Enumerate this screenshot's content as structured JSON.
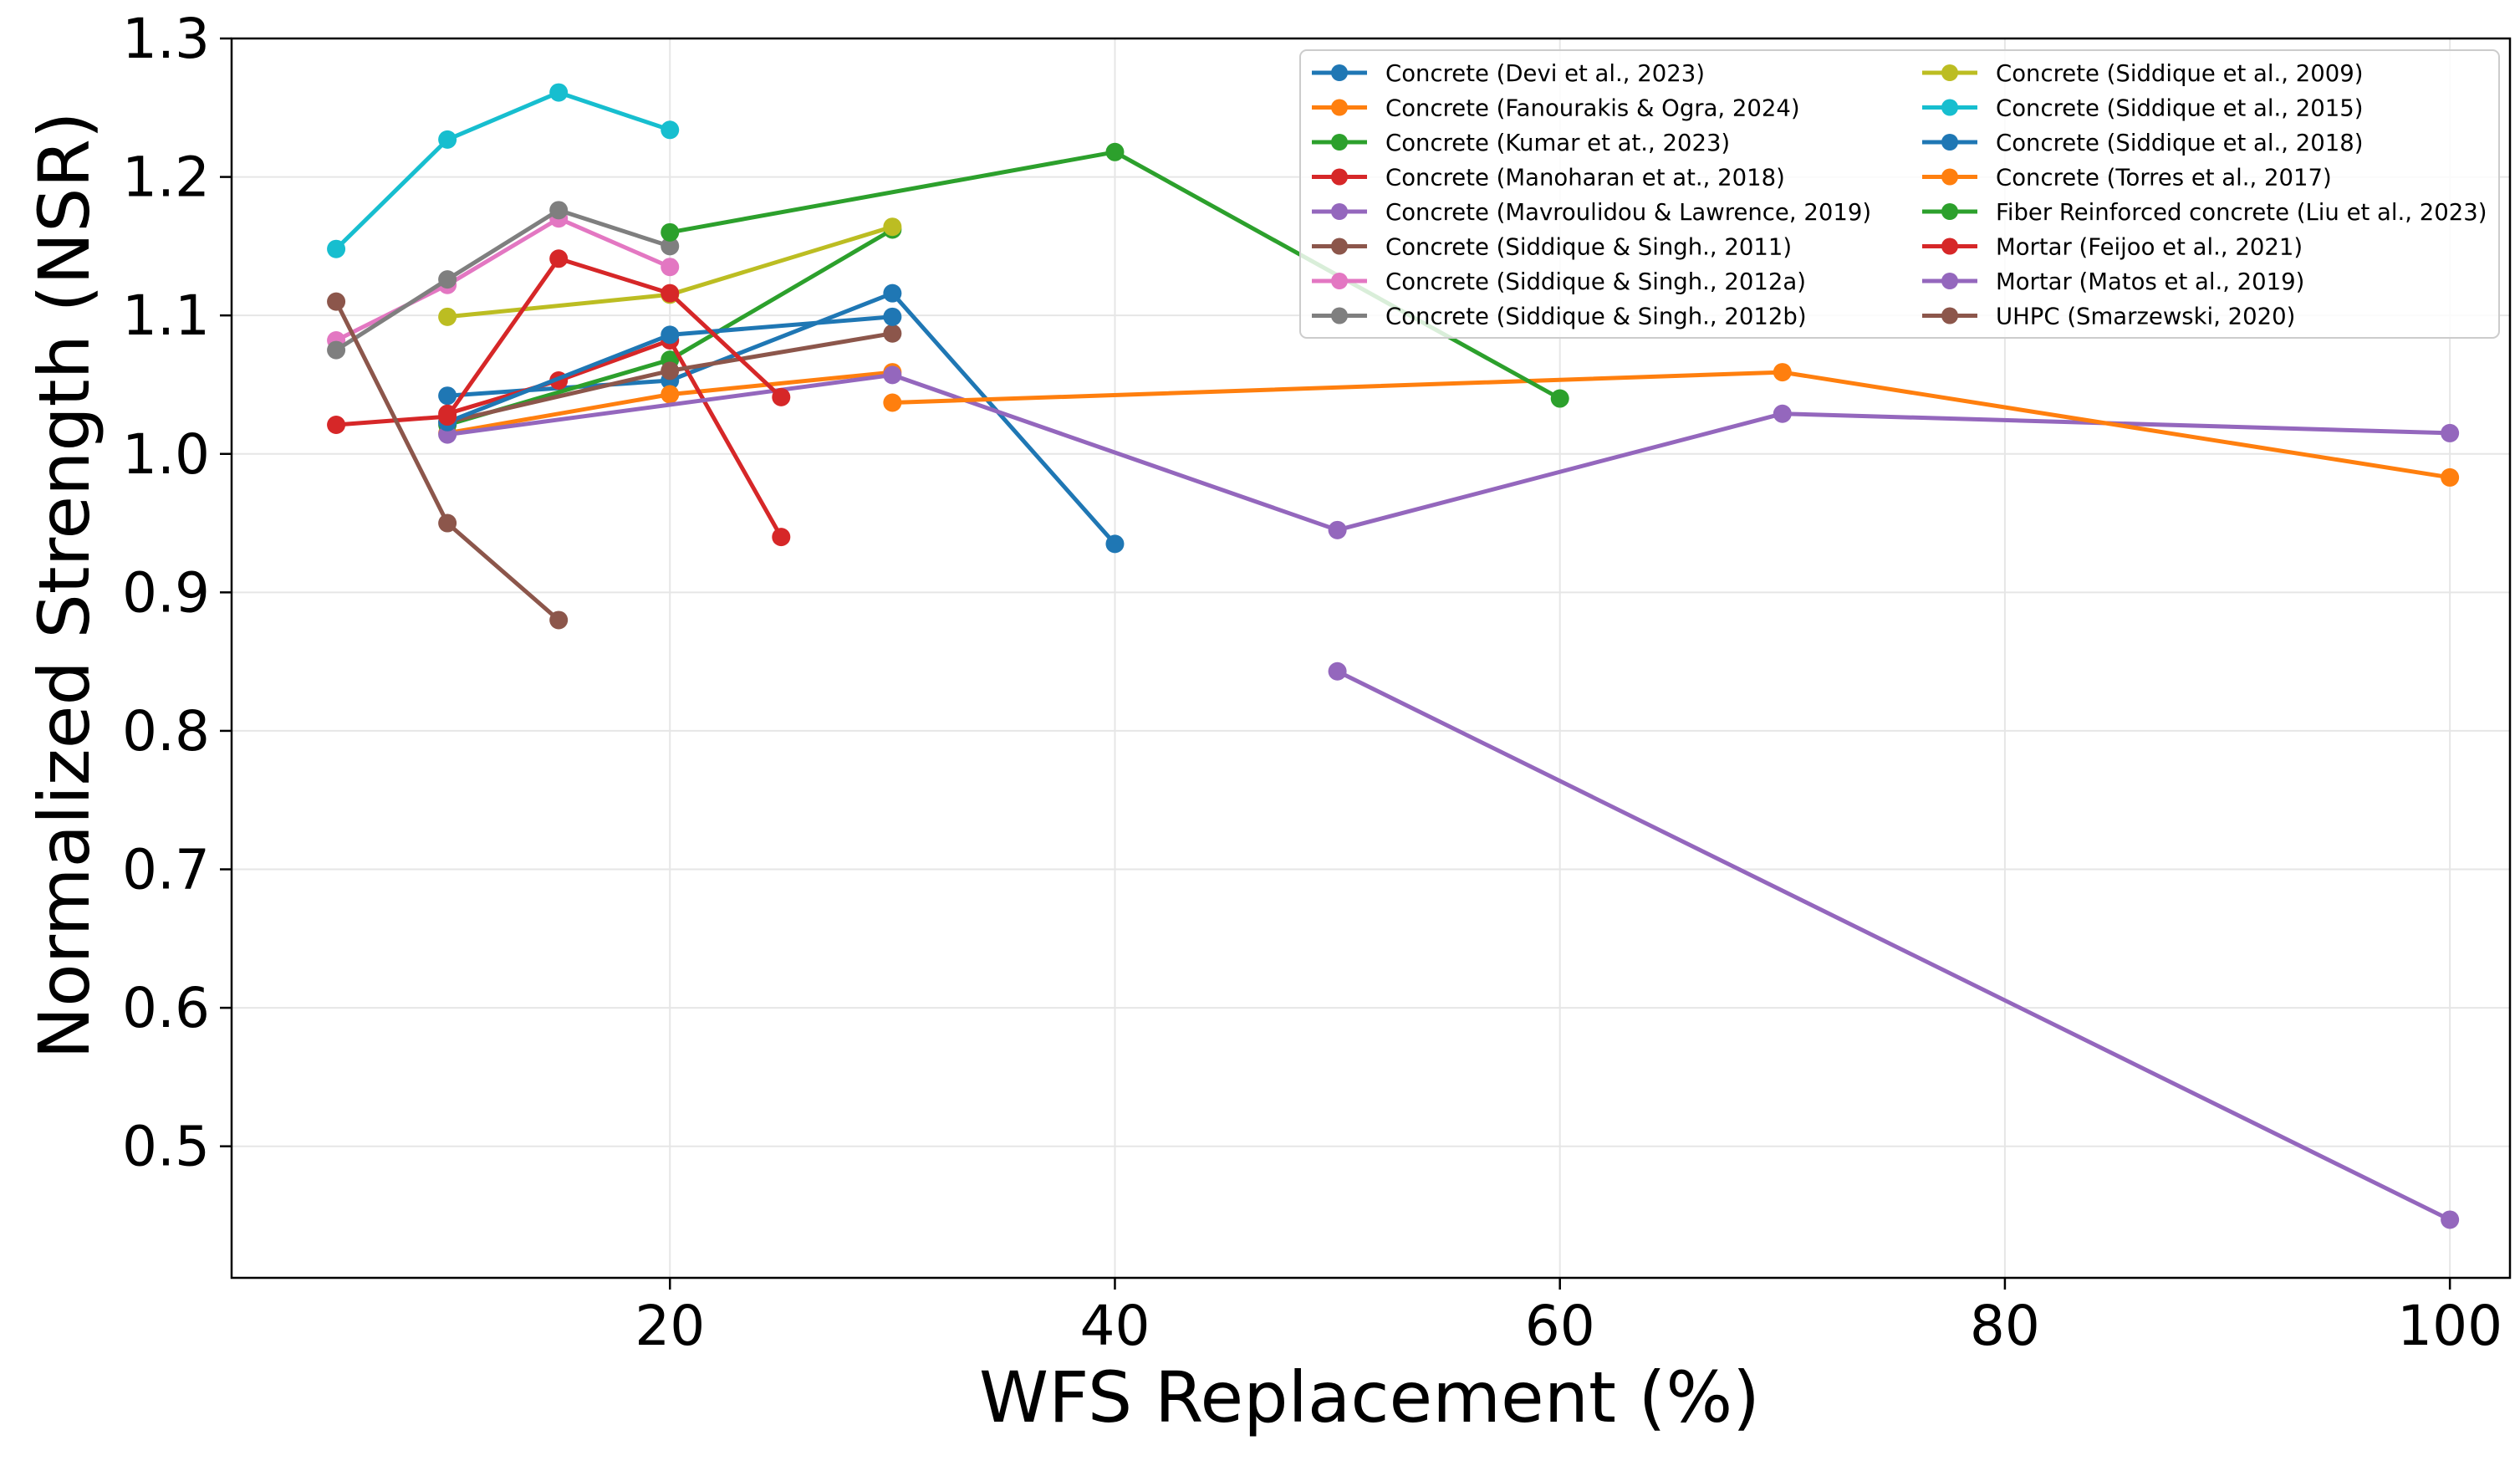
{
  "chart_data": {
    "type": "line",
    "title": "",
    "xlabel": "WFS Replacement (%)",
    "ylabel": "Normalized Strength (NSR)",
    "xlim": [
      0.3,
      102.7
    ],
    "ylim": [
      0.405,
      1.3
    ],
    "xticks": [
      20,
      40,
      60,
      80,
      100
    ],
    "xtick_labels": [
      "20",
      "40",
      "60",
      "80",
      "100"
    ],
    "yticks": [
      0.5,
      0.6,
      0.7,
      0.8,
      0.9,
      1.0,
      1.1,
      1.2,
      1.3
    ],
    "ytick_labels": [
      "0.5",
      "0.6",
      "0.7",
      "0.8",
      "0.9",
      "1.0",
      "1.1",
      "1.2",
      "1.3"
    ],
    "grid": true,
    "legend_position": "top-right",
    "legend_columns": 2,
    "series": [
      {
        "name": "Concrete (Devi et al., 2023)",
        "color": "#1f77b4",
        "x": [
          10,
          20,
          30,
          40
        ],
        "y": [
          1.042,
          1.053,
          1.116,
          0.935
        ]
      },
      {
        "name": "Concrete (Fanourakis & Ogra, 2024)",
        "color": "#ff7f0e",
        "x": [
          10,
          20,
          30
        ],
        "y": [
          1.015,
          1.043,
          1.059
        ]
      },
      {
        "name": "Concrete (Kumar et at., 2023)",
        "color": "#2ca02c",
        "x": [
          10,
          20,
          30
        ],
        "y": [
          1.021,
          1.068,
          1.162
        ]
      },
      {
        "name": "Concrete (Manoharan et at., 2018)",
        "color": "#d62728",
        "x": [
          10,
          15,
          20,
          25
        ],
        "y": [
          1.029,
          1.053,
          1.082,
          0.94
        ]
      },
      {
        "name": "Concrete (Mavroulidou & Lawrence, 2019)",
        "color": "#9467bd",
        "x": [
          10,
          30,
          50,
          70,
          100
        ],
        "y": [
          1.014,
          1.057,
          0.945,
          1.029,
          1.015
        ]
      },
      {
        "name": "Concrete (Siddique & Singh.,  2011)",
        "color": "#8c564b",
        "x": [
          10,
          20,
          30
        ],
        "y": [
          1.023,
          1.06,
          1.087
        ]
      },
      {
        "name": "Concrete (Siddique & Singh.,  2012a)",
        "color": "#e377c2",
        "x": [
          5,
          10,
          15,
          20
        ],
        "y": [
          1.082,
          1.122,
          1.17,
          1.135
        ]
      },
      {
        "name": "Concrete (Siddique & Singh.,  2012b)",
        "color": "#7f7f7f",
        "x": [
          5,
          10,
          15,
          20
        ],
        "y": [
          1.075,
          1.126,
          1.176,
          1.15
        ]
      },
      {
        "name": "Concrete (Siddique et al., 2009)",
        "color": "#bcbd22",
        "x": [
          10,
          20,
          30
        ],
        "y": [
          1.099,
          1.115,
          1.164
        ]
      },
      {
        "name": "Concrete (Siddique et al., 2015)",
        "color": "#17becf",
        "x": [
          5,
          10,
          15,
          20
        ],
        "y": [
          1.148,
          1.227,
          1.261,
          1.234
        ]
      },
      {
        "name": "Concrete (Siddique et al., 2018)",
        "color": "#1f77b4",
        "x": [
          10,
          20,
          30
        ],
        "y": [
          1.023,
          1.086,
          1.099
        ]
      },
      {
        "name": "Concrete (Torres et al., 2017)",
        "color": "#ff7f0e",
        "x": [
          30,
          70,
          100
        ],
        "y": [
          1.037,
          1.059,
          0.983
        ]
      },
      {
        "name": "Fiber Reinforced concrete (Liu et al., 2023)",
        "color": "#2ca02c",
        "x": [
          20,
          40,
          60
        ],
        "y": [
          1.16,
          1.218,
          1.04
        ]
      },
      {
        "name": "Mortar (Feijoo et al., 2021)",
        "color": "#d62728",
        "x": [
          5,
          10,
          15,
          20,
          25
        ],
        "y": [
          1.021,
          1.027,
          1.141,
          1.116,
          1.041
        ]
      },
      {
        "name": "Mortar (Matos et al., 2019)",
        "color": "#9467bd",
        "x": [
          50,
          100
        ],
        "y": [
          0.843,
          0.447
        ]
      },
      {
        "name": "UHPC (Smarzewski, 2020)",
        "color": "#8c564b",
        "x": [
          5,
          10,
          15
        ],
        "y": [
          1.11,
          0.95,
          0.88
        ]
      }
    ]
  }
}
